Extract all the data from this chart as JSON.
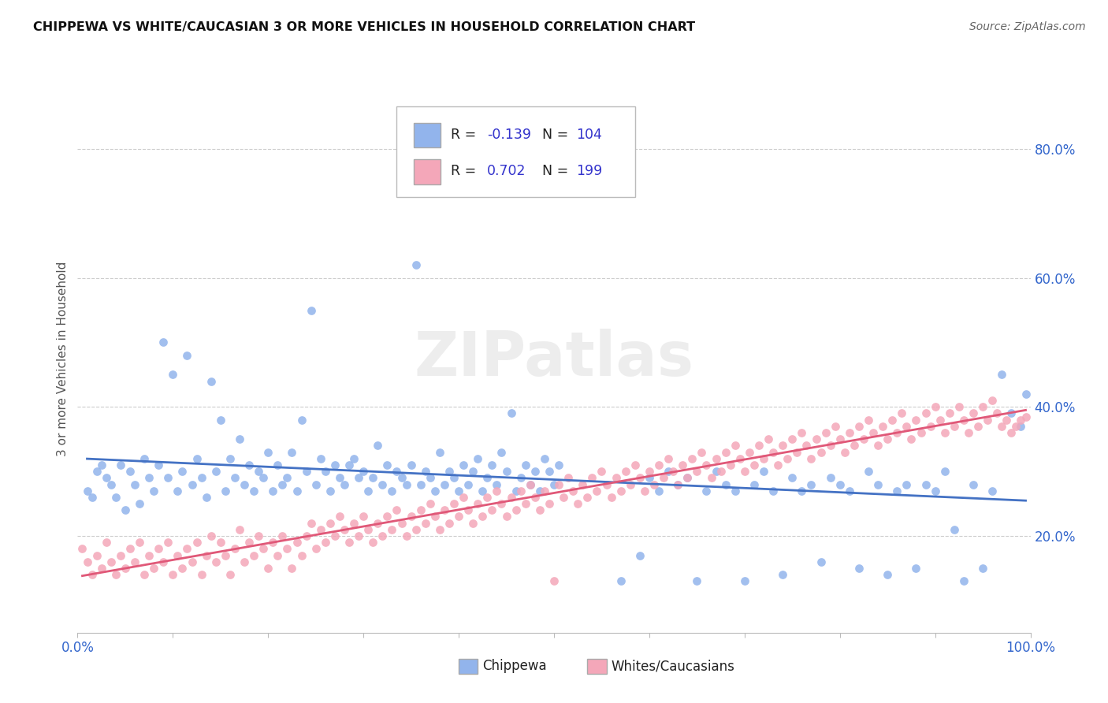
{
  "title": "CHIPPEWA VS WHITE/CAUCASIAN 3 OR MORE VEHICLES IN HOUSEHOLD CORRELATION CHART",
  "source": "Source: ZipAtlas.com",
  "ylabel": "3 or more Vehicles in Household",
  "xlim": [
    0.0,
    100.0
  ],
  "ylim": [
    5.0,
    90.0
  ],
  "yticks": [
    20.0,
    40.0,
    60.0,
    80.0
  ],
  "ytick_labels": [
    "20.0%",
    "40.0%",
    "60.0%",
    "80.0%"
  ],
  "color_blue": "#92B4EC",
  "color_pink": "#F4A7B9",
  "line_blue": "#4472C4",
  "line_pink": "#E05878",
  "r_color": "#3333CC",
  "background": "#FFFFFF",
  "grid_color": "#CCCCCC",
  "blue_scatter": [
    [
      1.0,
      27.0
    ],
    [
      1.5,
      26.0
    ],
    [
      2.0,
      30.0
    ],
    [
      2.5,
      31.0
    ],
    [
      3.0,
      29.0
    ],
    [
      3.5,
      28.0
    ],
    [
      4.0,
      26.0
    ],
    [
      4.5,
      31.0
    ],
    [
      5.0,
      24.0
    ],
    [
      5.5,
      30.0
    ],
    [
      6.0,
      28.0
    ],
    [
      6.5,
      25.0
    ],
    [
      7.0,
      32.0
    ],
    [
      7.5,
      29.0
    ],
    [
      8.0,
      27.0
    ],
    [
      8.5,
      31.0
    ],
    [
      9.0,
      50.0
    ],
    [
      9.5,
      29.0
    ],
    [
      10.0,
      45.0
    ],
    [
      10.5,
      27.0
    ],
    [
      11.0,
      30.0
    ],
    [
      11.5,
      48.0
    ],
    [
      12.0,
      28.0
    ],
    [
      12.5,
      32.0
    ],
    [
      13.0,
      29.0
    ],
    [
      13.5,
      26.0
    ],
    [
      14.0,
      44.0
    ],
    [
      14.5,
      30.0
    ],
    [
      15.0,
      38.0
    ],
    [
      15.5,
      27.0
    ],
    [
      16.0,
      32.0
    ],
    [
      16.5,
      29.0
    ],
    [
      17.0,
      35.0
    ],
    [
      17.5,
      28.0
    ],
    [
      18.0,
      31.0
    ],
    [
      18.5,
      27.0
    ],
    [
      19.0,
      30.0
    ],
    [
      19.5,
      29.0
    ],
    [
      20.0,
      33.0
    ],
    [
      20.5,
      27.0
    ],
    [
      21.0,
      31.0
    ],
    [
      21.5,
      28.0
    ],
    [
      22.0,
      29.0
    ],
    [
      22.5,
      33.0
    ],
    [
      23.0,
      27.0
    ],
    [
      23.5,
      38.0
    ],
    [
      24.0,
      30.0
    ],
    [
      24.5,
      55.0
    ],
    [
      25.0,
      28.0
    ],
    [
      25.5,
      32.0
    ],
    [
      26.0,
      30.0
    ],
    [
      26.5,
      27.0
    ],
    [
      27.0,
      31.0
    ],
    [
      27.5,
      29.0
    ],
    [
      28.0,
      28.0
    ],
    [
      28.5,
      31.0
    ],
    [
      29.0,
      32.0
    ],
    [
      29.5,
      29.0
    ],
    [
      30.0,
      30.0
    ],
    [
      30.5,
      27.0
    ],
    [
      31.0,
      29.0
    ],
    [
      31.5,
      34.0
    ],
    [
      32.0,
      28.0
    ],
    [
      32.5,
      31.0
    ],
    [
      33.0,
      27.0
    ],
    [
      33.5,
      30.0
    ],
    [
      34.0,
      29.0
    ],
    [
      34.5,
      28.0
    ],
    [
      35.0,
      31.0
    ],
    [
      35.5,
      62.0
    ],
    [
      36.0,
      28.0
    ],
    [
      36.5,
      30.0
    ],
    [
      37.0,
      29.0
    ],
    [
      37.5,
      27.0
    ],
    [
      38.0,
      33.0
    ],
    [
      38.5,
      28.0
    ],
    [
      39.0,
      30.0
    ],
    [
      39.5,
      29.0
    ],
    [
      40.0,
      27.0
    ],
    [
      40.5,
      31.0
    ],
    [
      41.0,
      28.0
    ],
    [
      41.5,
      30.0
    ],
    [
      42.0,
      32.0
    ],
    [
      42.5,
      27.0
    ],
    [
      43.0,
      29.0
    ],
    [
      43.5,
      31.0
    ],
    [
      44.0,
      28.0
    ],
    [
      44.5,
      33.0
    ],
    [
      45.0,
      30.0
    ],
    [
      45.5,
      39.0
    ],
    [
      46.0,
      27.0
    ],
    [
      46.5,
      29.0
    ],
    [
      47.0,
      31.0
    ],
    [
      47.5,
      28.0
    ],
    [
      48.0,
      30.0
    ],
    [
      48.5,
      27.0
    ],
    [
      49.0,
      32.0
    ],
    [
      49.5,
      30.0
    ],
    [
      50.0,
      28.0
    ],
    [
      50.5,
      31.0
    ],
    [
      57.0,
      13.0
    ],
    [
      59.0,
      17.0
    ],
    [
      60.0,
      29.0
    ],
    [
      61.0,
      27.0
    ],
    [
      62.0,
      30.0
    ],
    [
      63.0,
      28.0
    ],
    [
      64.0,
      29.0
    ],
    [
      65.0,
      13.0
    ],
    [
      66.0,
      27.0
    ],
    [
      67.0,
      30.0
    ],
    [
      68.0,
      28.0
    ],
    [
      69.0,
      27.0
    ],
    [
      70.0,
      13.0
    ],
    [
      71.0,
      28.0
    ],
    [
      72.0,
      30.0
    ],
    [
      73.0,
      27.0
    ],
    [
      74.0,
      14.0
    ],
    [
      75.0,
      29.0
    ],
    [
      76.0,
      27.0
    ],
    [
      77.0,
      28.0
    ],
    [
      78.0,
      16.0
    ],
    [
      79.0,
      29.0
    ],
    [
      80.0,
      28.0
    ],
    [
      81.0,
      27.0
    ],
    [
      82.0,
      15.0
    ],
    [
      83.0,
      30.0
    ],
    [
      84.0,
      28.0
    ],
    [
      85.0,
      14.0
    ],
    [
      86.0,
      27.0
    ],
    [
      87.0,
      28.0
    ],
    [
      88.0,
      15.0
    ],
    [
      89.0,
      28.0
    ],
    [
      90.0,
      27.0
    ],
    [
      91.0,
      30.0
    ],
    [
      92.0,
      21.0
    ],
    [
      93.0,
      13.0
    ],
    [
      94.0,
      28.0
    ],
    [
      95.0,
      15.0
    ],
    [
      96.0,
      27.0
    ],
    [
      97.0,
      45.0
    ],
    [
      98.0,
      39.0
    ],
    [
      99.0,
      37.0
    ],
    [
      99.5,
      42.0
    ]
  ],
  "pink_scatter": [
    [
      0.5,
      18.0
    ],
    [
      1.0,
      16.0
    ],
    [
      1.5,
      14.0
    ],
    [
      2.0,
      17.0
    ],
    [
      2.5,
      15.0
    ],
    [
      3.0,
      19.0
    ],
    [
      3.5,
      16.0
    ],
    [
      4.0,
      14.0
    ],
    [
      4.5,
      17.0
    ],
    [
      5.0,
      15.0
    ],
    [
      5.5,
      18.0
    ],
    [
      6.0,
      16.0
    ],
    [
      6.5,
      19.0
    ],
    [
      7.0,
      14.0
    ],
    [
      7.5,
      17.0
    ],
    [
      8.0,
      15.0
    ],
    [
      8.5,
      18.0
    ],
    [
      9.0,
      16.0
    ],
    [
      9.5,
      19.0
    ],
    [
      10.0,
      14.0
    ],
    [
      10.5,
      17.0
    ],
    [
      11.0,
      15.0
    ],
    [
      11.5,
      18.0
    ],
    [
      12.0,
      16.0
    ],
    [
      12.5,
      19.0
    ],
    [
      13.0,
      14.0
    ],
    [
      13.5,
      17.0
    ],
    [
      14.0,
      20.0
    ],
    [
      14.5,
      16.0
    ],
    [
      15.0,
      19.0
    ],
    [
      15.5,
      17.0
    ],
    [
      16.0,
      14.0
    ],
    [
      16.5,
      18.0
    ],
    [
      17.0,
      21.0
    ],
    [
      17.5,
      16.0
    ],
    [
      18.0,
      19.0
    ],
    [
      18.5,
      17.0
    ],
    [
      19.0,
      20.0
    ],
    [
      19.5,
      18.0
    ],
    [
      20.0,
      15.0
    ],
    [
      20.5,
      19.0
    ],
    [
      21.0,
      17.0
    ],
    [
      21.5,
      20.0
    ],
    [
      22.0,
      18.0
    ],
    [
      22.5,
      15.0
    ],
    [
      23.0,
      19.0
    ],
    [
      23.5,
      17.0
    ],
    [
      24.0,
      20.0
    ],
    [
      24.5,
      22.0
    ],
    [
      25.0,
      18.0
    ],
    [
      25.5,
      21.0
    ],
    [
      26.0,
      19.0
    ],
    [
      26.5,
      22.0
    ],
    [
      27.0,
      20.0
    ],
    [
      27.5,
      23.0
    ],
    [
      28.0,
      21.0
    ],
    [
      28.5,
      19.0
    ],
    [
      29.0,
      22.0
    ],
    [
      29.5,
      20.0
    ],
    [
      30.0,
      23.0
    ],
    [
      30.5,
      21.0
    ],
    [
      31.0,
      19.0
    ],
    [
      31.5,
      22.0
    ],
    [
      32.0,
      20.0
    ],
    [
      32.5,
      23.0
    ],
    [
      33.0,
      21.0
    ],
    [
      33.5,
      24.0
    ],
    [
      34.0,
      22.0
    ],
    [
      34.5,
      20.0
    ],
    [
      35.0,
      23.0
    ],
    [
      35.5,
      21.0
    ],
    [
      36.0,
      24.0
    ],
    [
      36.5,
      22.0
    ],
    [
      37.0,
      25.0
    ],
    [
      37.5,
      23.0
    ],
    [
      38.0,
      21.0
    ],
    [
      38.5,
      24.0
    ],
    [
      39.0,
      22.0
    ],
    [
      39.5,
      25.0
    ],
    [
      40.0,
      23.0
    ],
    [
      40.5,
      26.0
    ],
    [
      41.0,
      24.0
    ],
    [
      41.5,
      22.0
    ],
    [
      42.0,
      25.0
    ],
    [
      42.5,
      23.0
    ],
    [
      43.0,
      26.0
    ],
    [
      43.5,
      24.0
    ],
    [
      44.0,
      27.0
    ],
    [
      44.5,
      25.0
    ],
    [
      45.0,
      23.0
    ],
    [
      45.5,
      26.0
    ],
    [
      46.0,
      24.0
    ],
    [
      46.5,
      27.0
    ],
    [
      47.0,
      25.0
    ],
    [
      47.5,
      28.0
    ],
    [
      48.0,
      26.0
    ],
    [
      48.5,
      24.0
    ],
    [
      49.0,
      27.0
    ],
    [
      49.5,
      25.0
    ],
    [
      50.0,
      13.0
    ],
    [
      50.5,
      28.0
    ],
    [
      51.0,
      26.0
    ],
    [
      51.5,
      29.0
    ],
    [
      52.0,
      27.0
    ],
    [
      52.5,
      25.0
    ],
    [
      53.0,
      28.0
    ],
    [
      53.5,
      26.0
    ],
    [
      54.0,
      29.0
    ],
    [
      54.5,
      27.0
    ],
    [
      55.0,
      30.0
    ],
    [
      55.5,
      28.0
    ],
    [
      56.0,
      26.0
    ],
    [
      56.5,
      29.0
    ],
    [
      57.0,
      27.0
    ],
    [
      57.5,
      30.0
    ],
    [
      58.0,
      28.0
    ],
    [
      58.5,
      31.0
    ],
    [
      59.0,
      29.0
    ],
    [
      59.5,
      27.0
    ],
    [
      60.0,
      30.0
    ],
    [
      60.5,
      28.0
    ],
    [
      61.0,
      31.0
    ],
    [
      61.5,
      29.0
    ],
    [
      62.0,
      32.0
    ],
    [
      62.5,
      30.0
    ],
    [
      63.0,
      28.0
    ],
    [
      63.5,
      31.0
    ],
    [
      64.0,
      29.0
    ],
    [
      64.5,
      32.0
    ],
    [
      65.0,
      30.0
    ],
    [
      65.5,
      33.0
    ],
    [
      66.0,
      31.0
    ],
    [
      66.5,
      29.0
    ],
    [
      67.0,
      32.0
    ],
    [
      67.5,
      30.0
    ],
    [
      68.0,
      33.0
    ],
    [
      68.5,
      31.0
    ],
    [
      69.0,
      34.0
    ],
    [
      69.5,
      32.0
    ],
    [
      70.0,
      30.0
    ],
    [
      70.5,
      33.0
    ],
    [
      71.0,
      31.0
    ],
    [
      71.5,
      34.0
    ],
    [
      72.0,
      32.0
    ],
    [
      72.5,
      35.0
    ],
    [
      73.0,
      33.0
    ],
    [
      73.5,
      31.0
    ],
    [
      74.0,
      34.0
    ],
    [
      74.5,
      32.0
    ],
    [
      75.0,
      35.0
    ],
    [
      75.5,
      33.0
    ],
    [
      76.0,
      36.0
    ],
    [
      76.5,
      34.0
    ],
    [
      77.0,
      32.0
    ],
    [
      77.5,
      35.0
    ],
    [
      78.0,
      33.0
    ],
    [
      78.5,
      36.0
    ],
    [
      79.0,
      34.0
    ],
    [
      79.5,
      37.0
    ],
    [
      80.0,
      35.0
    ],
    [
      80.5,
      33.0
    ],
    [
      81.0,
      36.0
    ],
    [
      81.5,
      34.0
    ],
    [
      82.0,
      37.0
    ],
    [
      82.5,
      35.0
    ],
    [
      83.0,
      38.0
    ],
    [
      83.5,
      36.0
    ],
    [
      84.0,
      34.0
    ],
    [
      84.5,
      37.0
    ],
    [
      85.0,
      35.0
    ],
    [
      85.5,
      38.0
    ],
    [
      86.0,
      36.0
    ],
    [
      86.5,
      39.0
    ],
    [
      87.0,
      37.0
    ],
    [
      87.5,
      35.0
    ],
    [
      88.0,
      38.0
    ],
    [
      88.5,
      36.0
    ],
    [
      89.0,
      39.0
    ],
    [
      89.5,
      37.0
    ],
    [
      90.0,
      40.0
    ],
    [
      90.5,
      38.0
    ],
    [
      91.0,
      36.0
    ],
    [
      91.5,
      39.0
    ],
    [
      92.0,
      37.0
    ],
    [
      92.5,
      40.0
    ],
    [
      93.0,
      38.0
    ],
    [
      93.5,
      36.0
    ],
    [
      94.0,
      39.0
    ],
    [
      94.5,
      37.0
    ],
    [
      95.0,
      40.0
    ],
    [
      95.5,
      38.0
    ],
    [
      96.0,
      41.0
    ],
    [
      96.5,
      39.0
    ],
    [
      97.0,
      37.0
    ],
    [
      97.5,
      38.0
    ],
    [
      98.0,
      36.0
    ],
    [
      98.5,
      37.0
    ],
    [
      99.0,
      38.0
    ],
    [
      99.5,
      38.5
    ]
  ]
}
